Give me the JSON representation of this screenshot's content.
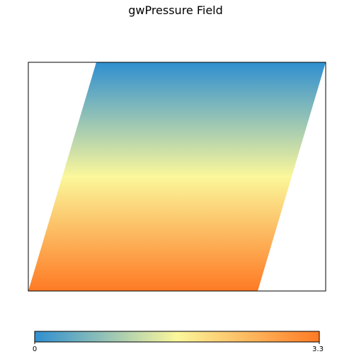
{
  "chart_data": {
    "type": "heatmap",
    "title": "gwPressure Field",
    "xlabel": "",
    "ylabel": "",
    "colorbar": {
      "min": 0,
      "max": 3.3,
      "tick_labels": [
        "0",
        "3.3"
      ],
      "colors": [
        "#2f8fd0",
        "#fbf79b",
        "#fe7a24"
      ]
    },
    "field": {
      "description_value": "value decreases from bottom (3.3) to top (0)",
      "value_at_bottom": 3.3,
      "value_at_top": 0
    }
  }
}
